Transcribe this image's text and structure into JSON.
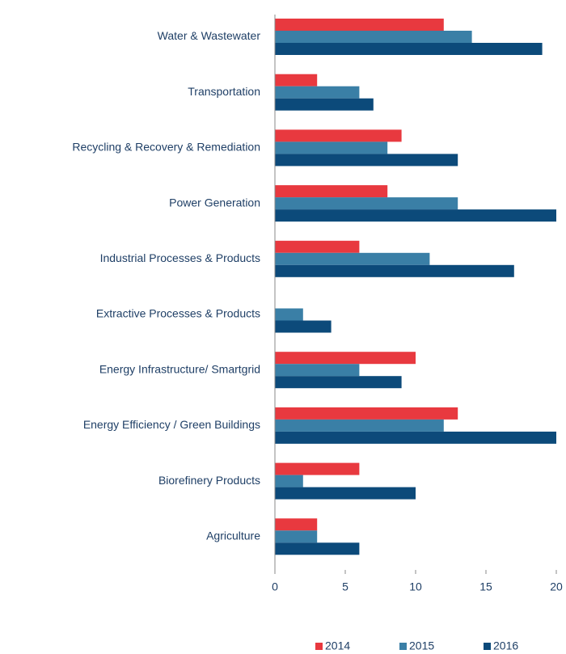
{
  "chart_data": {
    "type": "barh",
    "categories": [
      "Water & Wastewater",
      "Transportation",
      "Recycling & Recovery & Remediation",
      "Power Generation",
      "Industrial Processes & Products",
      "Extractive Processes & Products",
      "Energy Infrastructure/ Smartgrid",
      "Energy Efficiency / Green Buildings",
      "Biorefinery Products",
      "Agriculture"
    ],
    "series": [
      {
        "name": "2014",
        "color": "#e8393f",
        "values": [
          12,
          3,
          9,
          8,
          6,
          0,
          10,
          13,
          6,
          3
        ]
      },
      {
        "name": "2015",
        "color": "#3a7fa6",
        "values": [
          14,
          6,
          8,
          13,
          11,
          2,
          6,
          12,
          2,
          3
        ]
      },
      {
        "name": "2016",
        "color": "#0c4a7a",
        "values": [
          19,
          7,
          13,
          20,
          17,
          4,
          9,
          20,
          10,
          6
        ]
      }
    ],
    "xlim": [
      0,
      20
    ],
    "xticks": [
      0,
      5,
      10,
      15,
      20
    ],
    "legend": "bottom"
  }
}
